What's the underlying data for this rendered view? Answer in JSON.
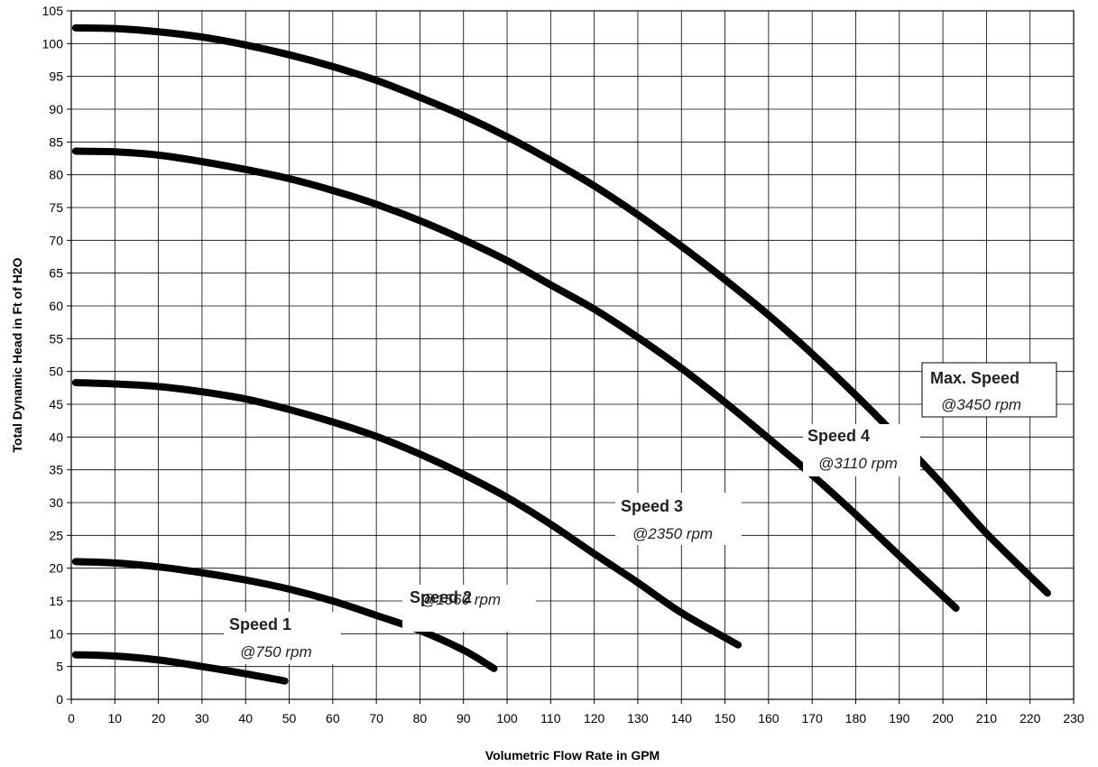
{
  "chart_data": {
    "type": "line",
    "title": "",
    "xlabel": "Volumetric Flow Rate in GPM",
    "ylabel": "Total Dynamic Head in Ft of H2O",
    "xlim": [
      0,
      230
    ],
    "ylim": [
      0,
      105
    ],
    "x_ticks": [
      "0",
      "10",
      "20",
      "30",
      "40",
      "50",
      "60",
      "70",
      "80",
      "90",
      "100",
      "110",
      "120",
      "130",
      "140",
      "150",
      "160",
      "170",
      "180",
      "190",
      "200",
      "210",
      "220",
      "230"
    ],
    "y_ticks": [
      "0",
      "5",
      "10",
      "15",
      "20",
      "25",
      "30",
      "35",
      "40",
      "45",
      "50",
      "55",
      "60",
      "65",
      "70",
      "75",
      "80",
      "85",
      "90",
      "95",
      "100",
      "105"
    ],
    "grid": true,
    "legend": "none",
    "series": [
      {
        "name": "Speed 1",
        "x": [
          1,
          10,
          20,
          30,
          40,
          49
        ],
        "y": [
          6.8,
          6.6,
          6.0,
          5.0,
          3.9,
          2.8
        ]
      },
      {
        "name": "Speed 2",
        "x": [
          1,
          10,
          20,
          30,
          40,
          50,
          60,
          70,
          80,
          90,
          97
        ],
        "y": [
          21.0,
          20.8,
          20.2,
          19.3,
          18.2,
          16.8,
          15.0,
          12.8,
          10.5,
          7.5,
          4.7
        ]
      },
      {
        "name": "Speed 3",
        "x": [
          1,
          10,
          20,
          30,
          40,
          50,
          60,
          70,
          80,
          90,
          100,
          110,
          120,
          130,
          140,
          153
        ],
        "y": [
          48.3,
          48.1,
          47.7,
          46.9,
          45.8,
          44.2,
          42.3,
          40.1,
          37.4,
          34.3,
          30.8,
          26.7,
          22.2,
          17.8,
          13.2,
          8.3
        ]
      },
      {
        "name": "Speed 4",
        "x": [
          1,
          10,
          20,
          30,
          40,
          50,
          60,
          70,
          80,
          90,
          100,
          110,
          120,
          130,
          140,
          150,
          160,
          170,
          180,
          190,
          203
        ],
        "y": [
          83.6,
          83.5,
          83.0,
          82.0,
          80.8,
          79.4,
          77.6,
          75.5,
          73.0,
          70.1,
          66.9,
          63.2,
          59.5,
          55.2,
          50.5,
          45.3,
          39.8,
          34.2,
          28.2,
          21.9,
          13.9
        ]
      },
      {
        "name": "Max. Speed",
        "x": [
          1,
          10,
          20,
          30,
          40,
          50,
          60,
          70,
          80,
          90,
          100,
          110,
          120,
          130,
          140,
          150,
          160,
          170,
          180,
          190,
          200,
          210,
          224
        ],
        "y": [
          102.4,
          102.3,
          101.8,
          101.0,
          99.8,
          98.3,
          96.5,
          94.4,
          91.8,
          89.0,
          85.8,
          82.2,
          78.3,
          73.9,
          69.1,
          64.0,
          58.6,
          52.7,
          46.4,
          39.7,
          32.7,
          25.3,
          16.2
        ]
      }
    ],
    "annotations": [
      {
        "name": "Speed 1",
        "rpm": "@750 rpm"
      },
      {
        "name": "Speed 2",
        "rpm": "@1560 rpm"
      },
      {
        "name": "Speed 3",
        "rpm": "@2350 rpm"
      },
      {
        "name": "Speed 4",
        "rpm": "@3110 rpm"
      },
      {
        "name": "Max. Speed",
        "rpm": "@3450 rpm"
      }
    ]
  }
}
